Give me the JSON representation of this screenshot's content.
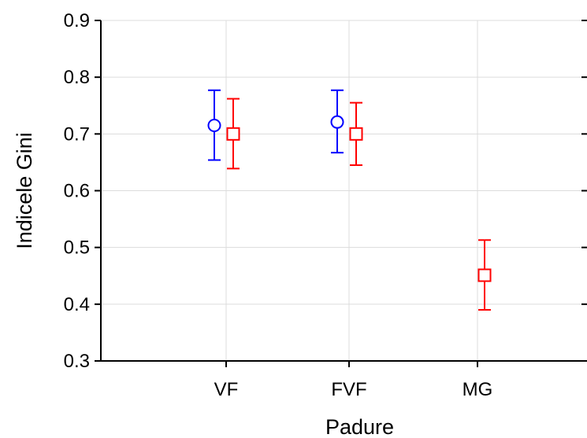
{
  "chart_data": {
    "type": "scatter",
    "title": "",
    "xlabel": "Padure",
    "ylabel": "Indicele Gini",
    "categories": [
      "VF",
      "FVF",
      "MG"
    ],
    "ylim": [
      0.3,
      0.9
    ],
    "yticks": [
      "0.3",
      "0.4",
      "0.5",
      "0.6",
      "0.7",
      "0.8",
      "0.9"
    ],
    "grid": true,
    "legend": "none",
    "series": [
      {
        "marker": "circle",
        "color": "#0000ff",
        "points": [
          {
            "category": "VF",
            "mean": 0.715,
            "low": 0.654,
            "high": 0.777
          },
          {
            "category": "FVF",
            "mean": 0.721,
            "low": 0.667,
            "high": 0.777
          }
        ]
      },
      {
        "marker": "square",
        "color": "#ff0000",
        "points": [
          {
            "category": "VF",
            "mean": 0.7,
            "low": 0.639,
            "high": 0.762
          },
          {
            "category": "FVF",
            "mean": 0.7,
            "low": 0.645,
            "high": 0.755
          },
          {
            "category": "MG",
            "mean": 0.451,
            "low": 0.39,
            "high": 0.513
          }
        ]
      }
    ]
  }
}
